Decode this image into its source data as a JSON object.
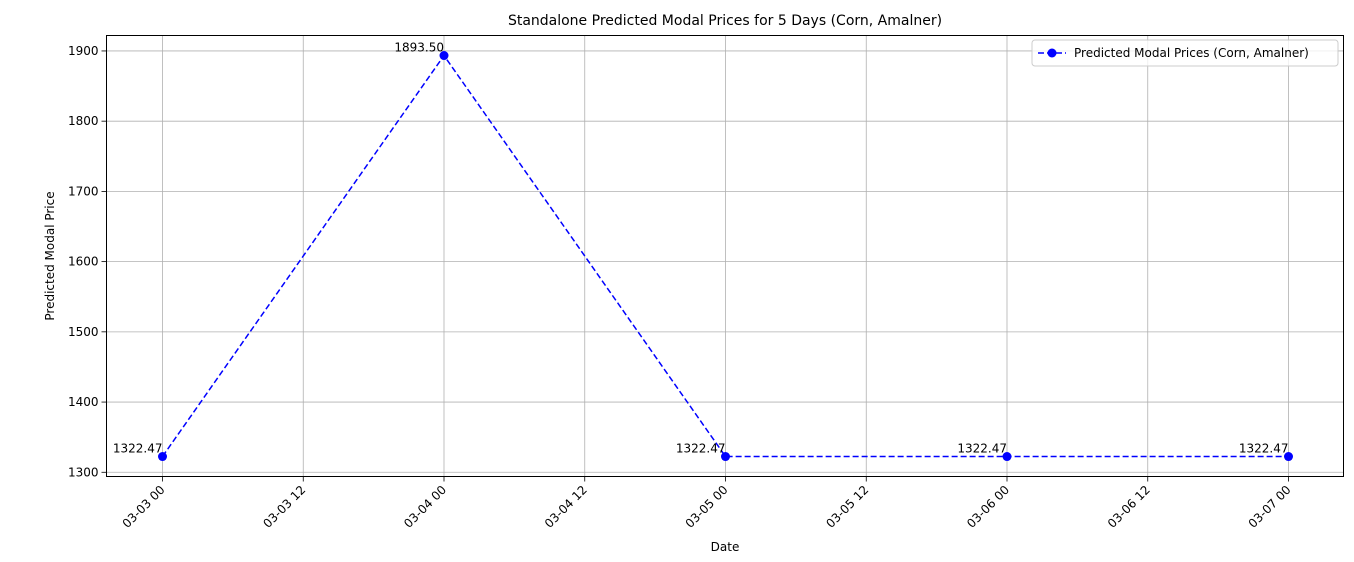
{
  "chart_data": {
    "type": "line",
    "title": "Standalone Predicted Modal Prices for 5 Days (Corn, Amalner)",
    "xlabel": "Date",
    "ylabel": "Predicted Modal Price",
    "x": [
      "03-03 00",
      "03-04 00",
      "03-05 00",
      "03-06 00",
      "03-07 00"
    ],
    "series": [
      {
        "name": "Predicted Modal Prices (Corn, Amalner)",
        "values": [
          1322.47,
          1893.5,
          1322.47,
          1322.47,
          1322.47
        ],
        "color": "#0000ff",
        "line_style": "dashed",
        "marker": "circle"
      }
    ],
    "data_labels": [
      "1322.47",
      "1893.50",
      "1322.47",
      "1322.47",
      "1322.47"
    ],
    "xtick_labels": [
      "03-03 00",
      "03-03 12",
      "03-04 00",
      "03-04 12",
      "03-05 00",
      "03-05 12",
      "03-06 00",
      "03-06 12",
      "03-07 00"
    ],
    "yticks": [
      1300,
      1400,
      1500,
      1600,
      1700,
      1800,
      1900
    ],
    "ylim": [
      1294,
      1922
    ],
    "grid": true,
    "legend_position": "top-right"
  }
}
